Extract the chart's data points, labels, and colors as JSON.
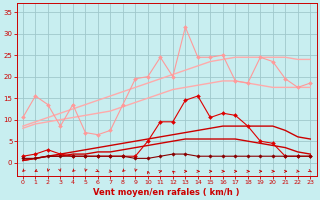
{
  "x": [
    0,
    1,
    2,
    3,
    4,
    5,
    6,
    7,
    8,
    9,
    10,
    11,
    12,
    13,
    14,
    15,
    16,
    17,
    18,
    19,
    20,
    21,
    22,
    23
  ],
  "series": [
    {
      "name": "rafales_max",
      "color": "#ff9999",
      "linewidth": 0.8,
      "marker": "D",
      "markersize": 2.0,
      "y": [
        10.5,
        15.5,
        13.5,
        8.5,
        13.5,
        7.0,
        6.5,
        7.5,
        13.5,
        19.5,
        20.0,
        24.5,
        20.0,
        31.5,
        24.5,
        24.5,
        25.0,
        19.0,
        18.5,
        24.5,
        23.5,
        19.5,
        17.5,
        18.5
      ]
    },
    {
      "name": "rafales_trend_upper",
      "color": "#ffaaaa",
      "linewidth": 1.0,
      "marker": null,
      "markersize": 0,
      "y": [
        8.5,
        9.5,
        10.5,
        11.5,
        12.5,
        13.5,
        14.5,
        15.5,
        16.5,
        17.5,
        18.5,
        19.5,
        20.5,
        21.5,
        22.5,
        23.5,
        24.0,
        24.5,
        24.5,
        24.5,
        24.5,
        24.5,
        24.0,
        24.0
      ]
    },
    {
      "name": "rafales_trend_lower",
      "color": "#ffaaaa",
      "linewidth": 1.0,
      "marker": null,
      "markersize": 0,
      "y": [
        8.0,
        9.0,
        9.5,
        10.0,
        10.5,
        11.0,
        11.5,
        12.0,
        13.0,
        14.0,
        15.0,
        16.0,
        17.0,
        17.5,
        18.0,
        18.5,
        19.0,
        19.0,
        18.5,
        18.0,
        17.5,
        17.5,
        17.5,
        17.5
      ]
    },
    {
      "name": "vent_max",
      "color": "#dd0000",
      "linewidth": 0.8,
      "marker": "D",
      "markersize": 2.0,
      "y": [
        1.5,
        2.0,
        3.0,
        2.0,
        1.5,
        1.5,
        1.5,
        1.5,
        1.5,
        1.5,
        5.0,
        9.5,
        9.5,
        14.5,
        15.5,
        10.5,
        11.5,
        11.0,
        8.5,
        5.0,
        4.5,
        1.5,
        1.5,
        1.5
      ]
    },
    {
      "name": "vent_trend_upper",
      "color": "#cc0000",
      "linewidth": 1.0,
      "marker": null,
      "markersize": 0,
      "y": [
        0.5,
        1.0,
        1.5,
        2.0,
        2.5,
        3.0,
        3.5,
        4.0,
        4.5,
        5.0,
        5.5,
        6.0,
        6.5,
        7.0,
        7.5,
        8.0,
        8.5,
        8.5,
        8.5,
        8.5,
        8.5,
        7.5,
        6.0,
        5.5
      ]
    },
    {
      "name": "vent_trend_lower",
      "color": "#cc0000",
      "linewidth": 1.0,
      "marker": null,
      "markersize": 0,
      "y": [
        0.5,
        1.0,
        1.5,
        1.5,
        2.0,
        2.0,
        2.5,
        2.5,
        3.0,
        3.5,
        4.0,
        4.5,
        5.0,
        5.5,
        5.5,
        5.5,
        5.5,
        5.5,
        5.0,
        4.5,
        4.0,
        3.5,
        2.5,
        2.0
      ]
    },
    {
      "name": "vent_mean",
      "color": "#880000",
      "linewidth": 0.8,
      "marker": "D",
      "markersize": 1.8,
      "y": [
        1.0,
        1.0,
        1.5,
        1.5,
        1.5,
        1.5,
        1.5,
        1.5,
        1.5,
        1.0,
        1.0,
        1.5,
        2.0,
        2.0,
        1.5,
        1.5,
        1.5,
        1.5,
        1.5,
        1.5,
        1.5,
        1.5,
        1.5,
        1.5
      ]
    }
  ],
  "wind_arrows": {
    "x": [
      0,
      1,
      2,
      3,
      4,
      5,
      6,
      7,
      8,
      9,
      10,
      11,
      12,
      13,
      14,
      15,
      16,
      17,
      18,
      19,
      20,
      21,
      22,
      23
    ],
    "angles_deg": [
      200,
      210,
      185,
      175,
      200,
      185,
      145,
      115,
      200,
      185,
      355,
      50,
      340,
      90,
      90,
      90,
      90,
      90,
      90,
      90,
      90,
      90,
      115,
      145
    ]
  },
  "xlabel": "Vent moyen/en rafales ( km/h )",
  "yticks": [
    0,
    5,
    10,
    15,
    20,
    25,
    30,
    35
  ],
  "xticks": [
    0,
    1,
    2,
    3,
    4,
    5,
    6,
    7,
    8,
    9,
    10,
    11,
    12,
    13,
    14,
    15,
    16,
    17,
    18,
    19,
    20,
    21,
    22,
    23
  ],
  "ylim": [
    -3,
    37
  ],
  "xlim": [
    -0.5,
    23.5
  ],
  "bg_color": "#c8eef0",
  "grid_color": "#a0c8cc",
  "tick_color": "#cc0000",
  "label_color": "#cc0000"
}
